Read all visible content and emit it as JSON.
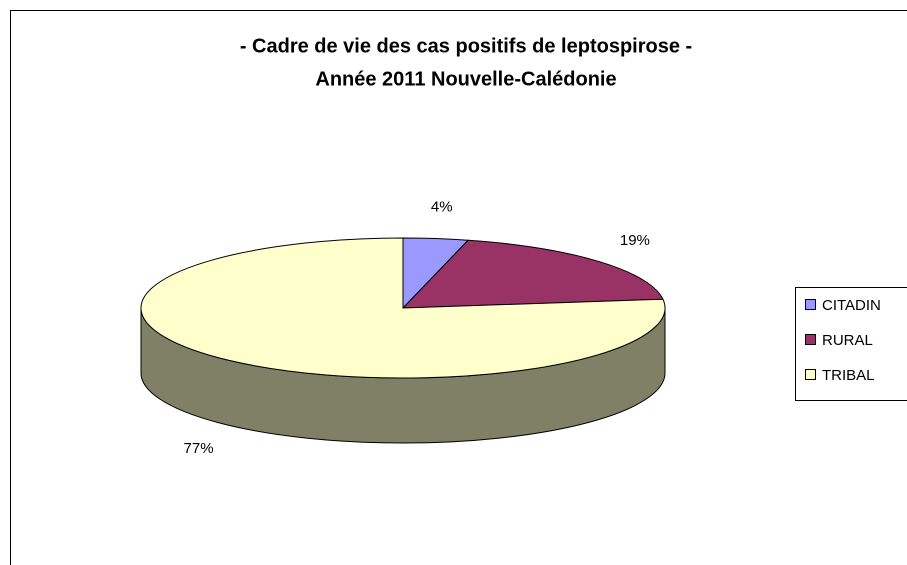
{
  "chart_data": {
    "type": "pie3d",
    "title": [
      "- Cadre de vie des cas positifs de leptospirose -",
      "Année 2011 Nouvelle-Calédonie"
    ],
    "categories": [
      "CITADIN",
      "RURAL",
      "TRIBAL"
    ],
    "values": [
      4,
      19,
      77
    ],
    "value_labels": [
      "4%",
      "19%",
      "77%"
    ],
    "colors": [
      "#9999ff",
      "#993366",
      "#ffffcc"
    ],
    "legend": "right"
  }
}
